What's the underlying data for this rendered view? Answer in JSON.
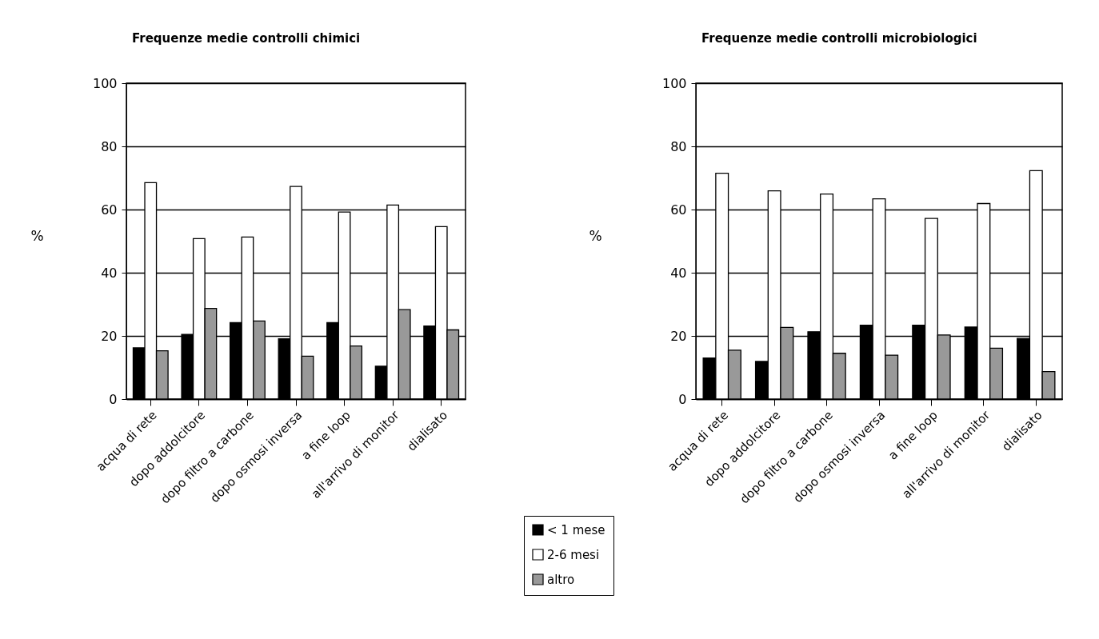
{
  "chart_data": [
    {
      "type": "bar",
      "title": "Frequenze medie controlli chimici",
      "ylabel": "%",
      "categories": [
        "acqua di rete",
        "dopo addolcitore",
        "dopo filtro a carbone",
        "dopo osmosi inversa",
        "a fine loop",
        "all'arrivo di monitor",
        "dialisato"
      ],
      "series": [
        {
          "color": "#000000",
          "values": [
            16.2,
            20.5,
            24.2,
            19.1,
            24.2,
            10.4,
            23.1
          ]
        },
        {
          "color": "#ffffff",
          "values": [
            68.5,
            50.8,
            51.3,
            67.3,
            59.2,
            61.4,
            54.6
          ]
        },
        {
          "color": "#999999",
          "values": [
            15.3,
            28.7,
            24.7,
            13.6,
            16.8,
            28.3,
            21.9
          ]
        }
      ],
      "ylim": [
        0,
        100
      ],
      "yticks": [
        0,
        20,
        40,
        60,
        80,
        100
      ],
      "grid": "y"
    },
    {
      "type": "bar",
      "title": "Frequenze medie controlli microbiologici",
      "ylabel": "%",
      "categories": [
        "acqua di rete",
        "dopo addolcitore",
        "dopo filtro a carbone",
        "dopo osmosi inversa",
        "a fine loop",
        "all'arrivo di monitor",
        "dialisato"
      ],
      "series": [
        {
          "name": "< 1 mese",
          "color": "#000000",
          "values": [
            13.0,
            11.9,
            21.3,
            23.4,
            23.4,
            22.8,
            19.2
          ]
        },
        {
          "name": "2-6 mesi",
          "color": "#ffffff",
          "values": [
            71.5,
            65.9,
            64.9,
            63.4,
            57.2,
            61.9,
            72.3
          ]
        },
        {
          "name": "altro",
          "color": "#999999",
          "values": [
            15.5,
            22.7,
            14.5,
            13.9,
            20.3,
            16.1,
            8.7
          ]
        }
      ],
      "ylim": [
        0,
        100
      ],
      "yticks": [
        0,
        20,
        40,
        60,
        80,
        100
      ],
      "grid": "y",
      "legend": "bottom"
    }
  ]
}
